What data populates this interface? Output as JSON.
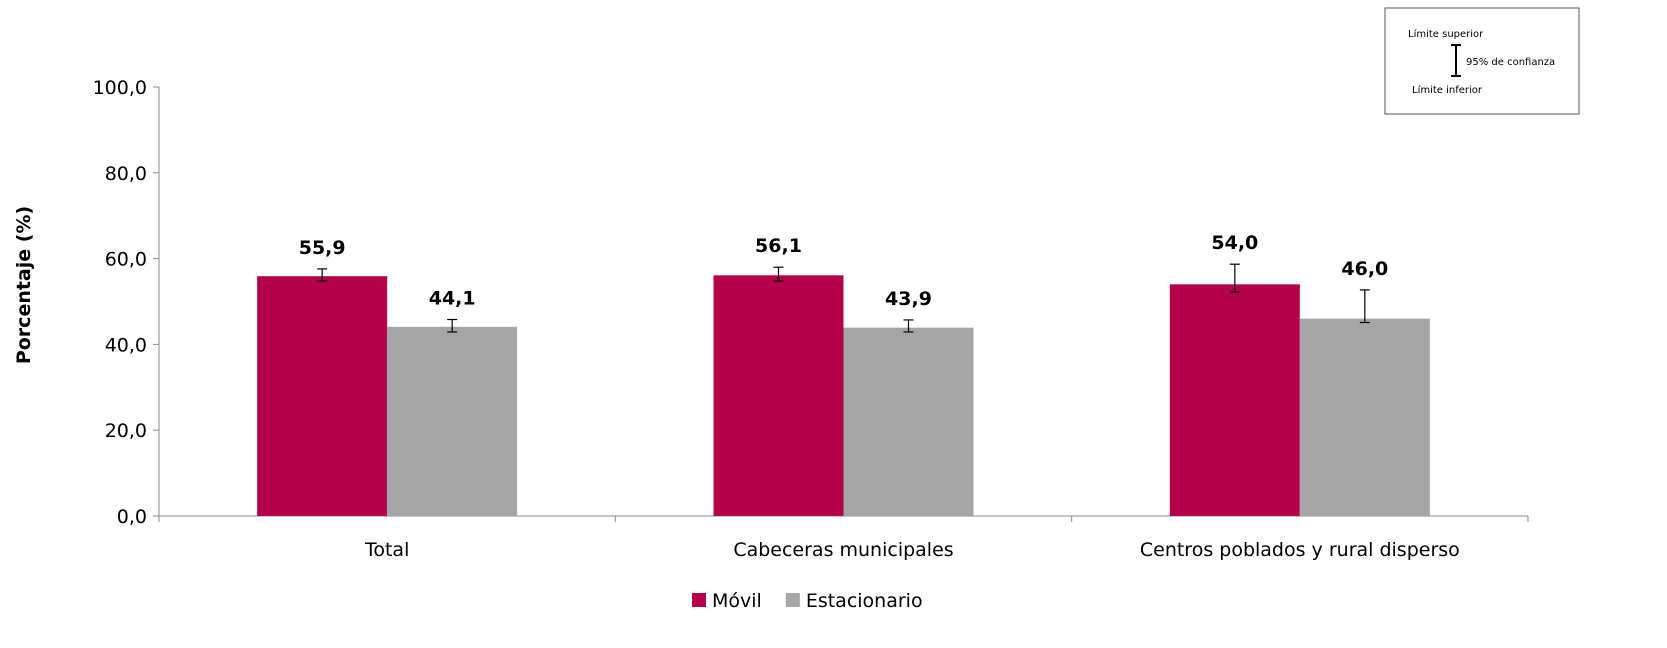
{
  "chart_data": {
    "type": "bar",
    "ylabel": "Porcentaje (%)",
    "ylim": [
      0,
      100
    ],
    "yticks": [
      "0,0",
      "20,0",
      "40,0",
      "60,0",
      "80,0",
      "100,0"
    ],
    "grid": false,
    "legend_position": "bottom",
    "categories": [
      "Total",
      "Cabeceras municipales",
      "Centros poblados y rural disperso"
    ],
    "series": [
      {
        "name": "Móvil",
        "color": "#b5004a",
        "values": [
          55.9,
          56.1,
          54.0
        ],
        "labels": [
          "55,9",
          "56,1",
          "54,0"
        ],
        "ci_lower": [
          54.8,
          54.8,
          52.2
        ],
        "ci_upper": [
          57.6,
          58.0,
          58.7
        ]
      },
      {
        "name": "Estacionario",
        "color": "#a6a6a6",
        "values": [
          44.1,
          43.9,
          46.0
        ],
        "labels": [
          "44,1",
          "43,9",
          "46,0"
        ],
        "ci_lower": [
          42.9,
          42.9,
          45.1
        ],
        "ci_upper": [
          45.8,
          45.7,
          52.7
        ]
      }
    ],
    "ci_legend": {
      "upper": "Límite superior",
      "lower": "Límite inferior",
      "label": "95% de confianza"
    }
  }
}
